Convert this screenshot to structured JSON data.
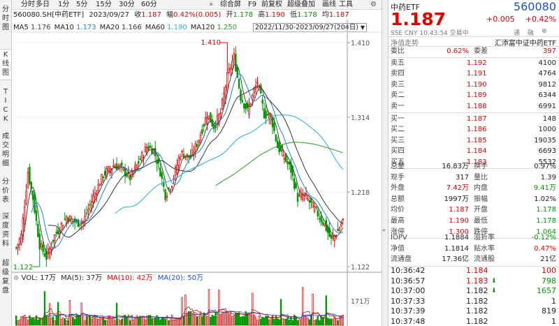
{
  "left_tabs": [
    {
      "label": "分时图",
      "active": false
    },
    {
      "label": "K线图",
      "active": true
    },
    {
      "label": "TICK",
      "active": false
    },
    {
      "label": "成交明细",
      "active": false
    },
    {
      "label": "分价表",
      "active": false
    },
    {
      "label": "深度资料",
      "active": false
    },
    {
      "label": "超级复盘",
      "active": false
    }
  ],
  "period_bar": {
    "periods": [
      "分时",
      "多日",
      "1分",
      "5分",
      "15分",
      "30分",
      "60分"
    ],
    "tools": [
      "综合屏",
      "F9",
      "前复权",
      "超级叠加",
      "画线",
      "工具"
    ],
    "more_icon": "double-chevron-icon",
    "settings_icon": "gear-icon"
  },
  "info": {
    "code_name": "560080.SH[中药ETF]",
    "date": "2023/09/27",
    "close_label": "收",
    "close": "1.187",
    "change_label": "幅",
    "change": "0.42%(0.005)",
    "open_label": "开",
    "open": "1.178",
    "high_label": "高",
    "high": "1.190",
    "low_label": "低",
    "low": "1.178",
    "avg_label": "均",
    "avg": "1.187",
    "ma": [
      {
        "label": "MA5",
        "value": "1.176",
        "color": "#444444"
      },
      {
        "label": "MA10",
        "value": "1.173",
        "color": "#2080d0"
      },
      {
        "label": "MA20",
        "value": "1.166",
        "color": "#333333"
      },
      {
        "label": "MA60",
        "value": "1.190",
        "color": "#1faed8"
      },
      {
        "label": "MA120",
        "value": "1.250",
        "color": "#2a9a2a"
      }
    ],
    "range": "2022/11/30-2023/09/27(204日)"
  },
  "axis": {
    "price_ticks": [
      "1.410",
      "1.314",
      "1.218",
      "1.122"
    ],
    "vol_tick": "171万"
  },
  "annotations": {
    "high": "1.410",
    "low": "1.122"
  },
  "volume_info": {
    "vol_label": "VOL: 17万",
    "ma5": "MA(5): 37万",
    "ma10": "MA(10): 42万",
    "ma20": "MA(20): 50万"
  },
  "chart_data": {
    "type": "candlestick",
    "ylim": [
      1.122,
      1.41
    ],
    "series_colors": {
      "up": "#e00000",
      "down": "#009a00",
      "ma5": "#444444",
      "ma10": "#2080d0",
      "ma20": "#333333",
      "ma60": "#1faed8",
      "ma120": "#2a9a2a"
    }
  },
  "side": {
    "name": "中药ETF",
    "code": "560080",
    "price": "1.187",
    "change": "+0.005",
    "change_pct": "+0.42%",
    "sub": "SSE  CNY  10:43:54  交易中",
    "tags": [
      "通",
      "融",
      "⊕"
    ],
    "trend_label": "净值走势",
    "fund_label": "汇添富中证中药ETF",
    "ratio": {
      "l1": "委比",
      "v1": "0.62%",
      "l2": "委差",
      "v2": "397"
    },
    "asks": [
      {
        "label": "卖五",
        "price": "1.192",
        "vol": "4100"
      },
      {
        "label": "卖四",
        "price": "1.191",
        "vol": "4764"
      },
      {
        "label": "卖三",
        "price": "1.190",
        "vol": "9812"
      },
      {
        "label": "卖二",
        "price": "1.189",
        "vol": "6344"
      },
      {
        "label": "卖一",
        "price": "1.188",
        "vol": "6991"
      }
    ],
    "bids": [
      {
        "label": "买一",
        "price": "1.187",
        "vol": "148"
      },
      {
        "label": "买二",
        "price": "1.186",
        "vol": "1000"
      },
      {
        "label": "买三",
        "price": "1.185",
        "vol": "19035"
      },
      {
        "label": "买四",
        "price": "1.184",
        "vol": "6693"
      },
      {
        "label": "买五",
        "price": "1.183",
        "vol": "5532"
      }
    ],
    "stats": [
      {
        "l1": "总量",
        "v1": "16.83万",
        "c1": "#222",
        "l2": "换手",
        "v2": "0.97%",
        "c2": "#222"
      },
      {
        "l1": "现手",
        "v1": "317",
        "c1": "#222",
        "l2": "量比",
        "v2": "1.39",
        "c2": "#222"
      },
      {
        "l1": "外盘",
        "v1": "7.42万",
        "c1": "#e00000",
        "l2": "内盘",
        "v2": "9.41万",
        "c2": "#009a00"
      },
      {
        "l1": "总额",
        "v1": "1997万",
        "c1": "#222",
        "l2": "振幅",
        "v2": "1.02%",
        "c2": "#222"
      },
      {
        "l1": "均价",
        "v1": "1.187",
        "c1": "#e00000",
        "l2": "开盘",
        "v2": "1.178",
        "c2": "#009a00"
      },
      {
        "l1": "最高",
        "v1": "1.190",
        "c1": "#e00000",
        "l2": "最低",
        "v2": "1.178",
        "c2": "#009a00"
      },
      {
        "l1": "涨停",
        "v1": "1.300",
        "c1": "#e00000",
        "l2": "跌停",
        "v2": "1.064",
        "c2": "#009a00"
      }
    ],
    "iopv": [
      {
        "l1": "IOPV",
        "v1": "1.1884",
        "c1": "#222",
        "l2": "溢折率",
        "v2": "-0.12%",
        "c2": "#009a00"
      },
      {
        "l1": "净值",
        "v1": "1.1814",
        "c1": "#222",
        "l2": "贴水率",
        "v2": "0.47%",
        "c2": "#e00000"
      },
      {
        "l1": "流通盘",
        "v1": "17.36亿",
        "c1": "#222",
        "l2": "流通股",
        "v2": "21亿",
        "c2": "#222"
      }
    ],
    "ticks": [
      {
        "time": "10:36:42",
        "price": "1.184",
        "vol": "100",
        "pc": "#e00000",
        "vc": "#e00000",
        "dir": ""
      },
      {
        "time": "10:36:57",
        "price": "1.183",
        "vol": "798",
        "pc": "#e00000",
        "vc": "#009a00",
        "dir": "down"
      },
      {
        "time": "10:37:00",
        "price": "1.182",
        "vol": "1657",
        "pc": "#222",
        "vc": "#009a00",
        "dir": "down"
      },
      {
        "time": "10:37:33",
        "price": "1.182",
        "vol": "1",
        "pc": "#222",
        "vc": "#222",
        "dir": ""
      },
      {
        "time": "10:37:39",
        "price": "1.182",
        "vol": "819",
        "pc": "#222",
        "vc": "#222",
        "dir": ""
      },
      {
        "time": "10:37:48",
        "price": "1.182",
        "vol": "1",
        "pc": "#222",
        "vc": "#222",
        "dir": ""
      }
    ]
  }
}
